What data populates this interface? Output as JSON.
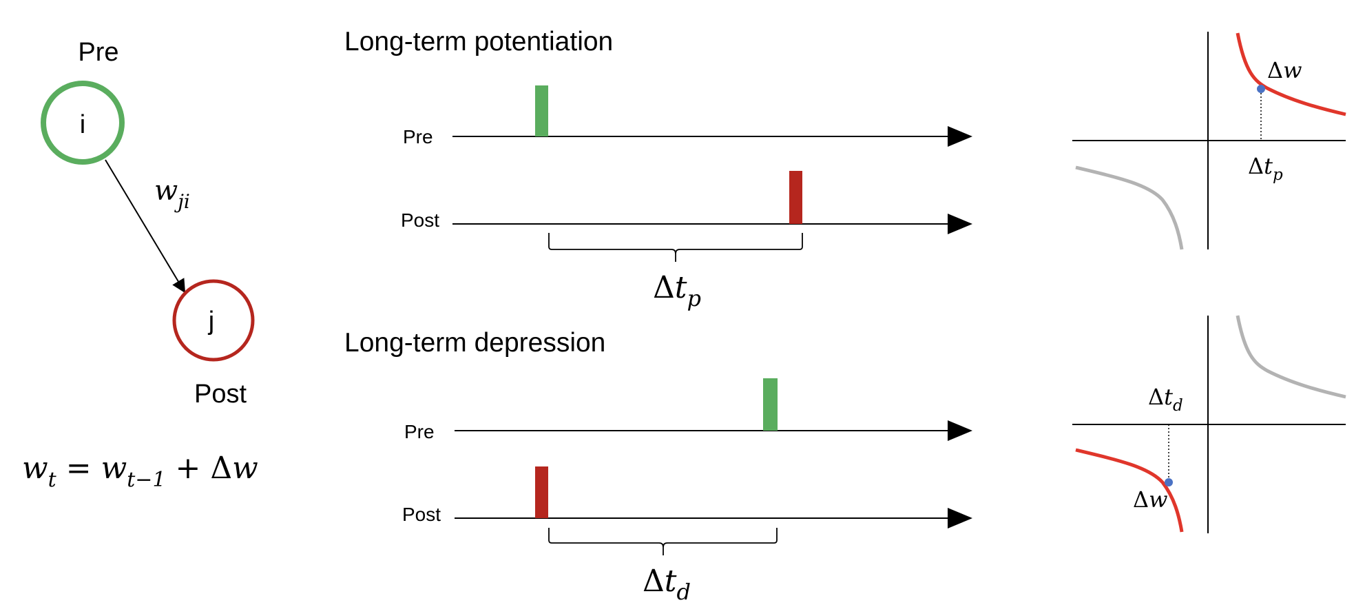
{
  "neurons": {
    "pre": {
      "title": "Pre",
      "id": "i"
    },
    "post": {
      "title": "Post",
      "id": "j"
    },
    "weight": {
      "base": "w",
      "sub": "ji"
    },
    "update_rule": {
      "lhs": "w",
      "lhs_sub": "t",
      "eq": " = ",
      "rhs": "w",
      "rhs_sub": "t−1",
      "plus": " + ",
      "delta": "Δ",
      "delta_var": "w"
    }
  },
  "ltp": {
    "title": "Long-term potentiation",
    "pre_label": "Pre",
    "post_label": "Post",
    "interval": {
      "delta": "Δ",
      "var": "t",
      "sub": "p"
    }
  },
  "ltd": {
    "title": "Long-term depression",
    "pre_label": "Pre",
    "post_label": "Post",
    "interval": {
      "delta": "Δ",
      "var": "t",
      "sub": "d"
    }
  },
  "ltp_plot": {
    "dw": {
      "delta": "Δ",
      "var": "w"
    },
    "dt": {
      "delta": "Δ",
      "var": "t",
      "sub": "p"
    }
  },
  "ltd_plot": {
    "dw": {
      "delta": "Δ",
      "var": "w"
    },
    "dt": {
      "delta": "Δ",
      "var": "t",
      "sub": "d"
    }
  },
  "colors": {
    "pre_green": "#5aad5e",
    "post_red": "#b5261e",
    "curve_red": "#e0362b",
    "curve_gray": "#b3b3b3",
    "point_blue": "#4a72c4"
  }
}
